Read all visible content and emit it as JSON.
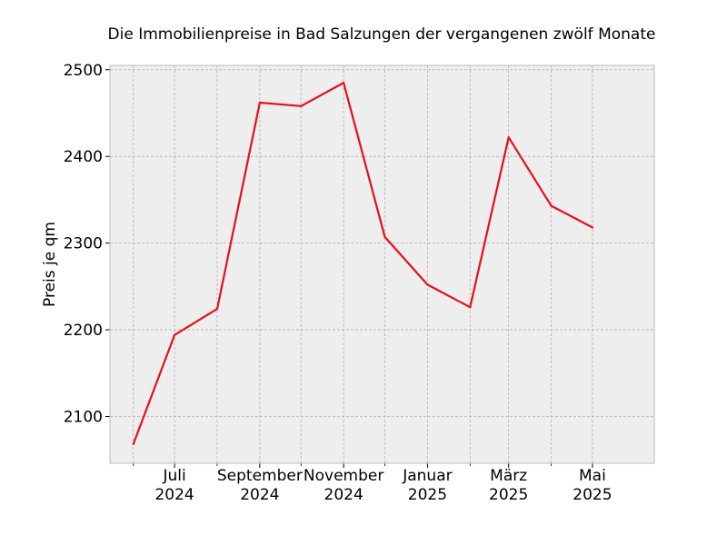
{
  "chart_data": {
    "type": "line",
    "title": "Die Immobilienpreise in Bad Salzungen der vergangenen zwölf Monate",
    "xlabel": "",
    "ylabel": "Preis je qm",
    "x": [
      "2024-06",
      "2024-07",
      "2024-08",
      "2024-09",
      "2024-10",
      "2024-11",
      "2024-12",
      "2025-01",
      "2025-02",
      "2025-03",
      "2025-04",
      "2025-05"
    ],
    "series": [
      {
        "values": [
          2068,
          2194,
          2224,
          2462,
          2458,
          2485,
          2307,
          2252,
          2226,
          2422,
          2343,
          2318
        ]
      }
    ],
    "xlim": [
      "2024-05-15",
      "2025-06-15"
    ],
    "ylim": [
      2046,
      2505
    ],
    "yticks": [
      2100,
      2200,
      2300,
      2400,
      2500
    ],
    "xticks_major": [
      {
        "x": "2024-07",
        "month": "Juli",
        "year": "2024"
      },
      {
        "x": "2024-09",
        "month": "September",
        "year": "2024"
      },
      {
        "x": "2024-11",
        "month": "November",
        "year": "2024"
      },
      {
        "x": "2025-01",
        "month": "Januar",
        "year": "2025"
      },
      {
        "x": "2025-03",
        "month": "März",
        "year": "2025"
      },
      {
        "x": "2025-05",
        "month": "Mai",
        "year": "2025"
      }
    ],
    "xticks_minor": [
      "2024-06",
      "2024-08",
      "2024-10",
      "2024-12",
      "2025-02",
      "2025-04"
    ],
    "grid": true,
    "colors": {
      "line": "#e3111b",
      "plot_background": "#eeeeee",
      "grid": "#b0b0b0",
      "frame": "#bcbcbc"
    }
  }
}
